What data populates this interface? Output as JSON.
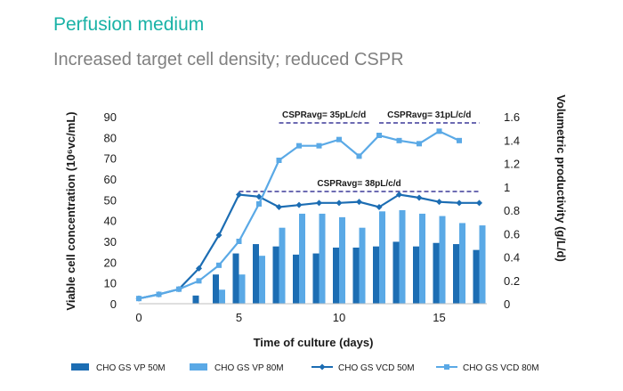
{
  "header": {
    "title": "Perfusion medium",
    "subtitle": "Increased target cell density; reduced CSPR"
  },
  "colors": {
    "title": "#19b2a6",
    "vp50": "#1c6db3",
    "vp80": "#5aa9e6",
    "vcd50": "#1c6db3",
    "vcd80": "#5aa9e6",
    "refline": "#3d3a99"
  },
  "chart_data": {
    "type": "bar",
    "xlabel": "Time of culture (days)",
    "ylabel_left": "Viable cell concentration (10⁶vc/mL)",
    "ylabel_right": "Volumetric productivity (g/L/d)",
    "xlim": [
      -0.5,
      17.5
    ],
    "ylim_left": [
      0,
      90
    ],
    "ylim_right": [
      0,
      1.6
    ],
    "x_ticks": [
      0,
      5,
      10,
      15
    ],
    "y_ticks_left": [
      0,
      10,
      20,
      30,
      40,
      50,
      60,
      70,
      80,
      90
    ],
    "y_ticks_right": [
      "0",
      "0.2",
      "0.4",
      "0.6",
      "0.8",
      "1",
      "1.2",
      "1.4",
      "1.6"
    ],
    "grid": false,
    "legend_position": "bottom",
    "series": [
      {
        "name": "CHO GS VP 50M",
        "kind": "bar",
        "axis": "right",
        "x": [
          3,
          4,
          5,
          6,
          7,
          8,
          9,
          10,
          11,
          12,
          13,
          14,
          15,
          16,
          17
        ],
        "values": [
          0.07,
          0.25,
          0.43,
          0.51,
          0.49,
          0.42,
          0.43,
          0.48,
          0.48,
          0.49,
          0.53,
          0.49,
          0.52,
          0.51,
          0.46
        ]
      },
      {
        "name": "CHO GS VP 80M",
        "kind": "bar",
        "axis": "right",
        "x": [
          3,
          4,
          5,
          6,
          7,
          8,
          9,
          10,
          11,
          12,
          13,
          14,
          15,
          16,
          17
        ],
        "values": [
          0,
          0.12,
          0.25,
          0.41,
          0.65,
          0.77,
          0.77,
          0.74,
          0.65,
          0.79,
          0.8,
          0.77,
          0.75,
          0.69,
          0.67
        ]
      },
      {
        "name": "CHO GS VCD 50M",
        "kind": "line",
        "axis": "left",
        "x": [
          0,
          1,
          2,
          3,
          4,
          5,
          6,
          7,
          8,
          9,
          10,
          11,
          12,
          13,
          14,
          15,
          16,
          17
        ],
        "values": [
          2.5,
          4.5,
          7,
          17,
          33,
          52.5,
          51.5,
          46.5,
          47.5,
          48.5,
          48.5,
          49,
          46.5,
          52.5,
          51,
          49,
          48.5,
          48.5
        ]
      },
      {
        "name": "CHO GS VCD 80M",
        "kind": "line",
        "axis": "left",
        "x": [
          0,
          1,
          2,
          3,
          4,
          5,
          6,
          7,
          8,
          9,
          10,
          11,
          12,
          13,
          14,
          15,
          16
        ],
        "values": [
          2.5,
          4.5,
          7,
          11,
          18.5,
          30,
          48,
          69,
          76,
          76,
          79,
          71,
          81,
          78.5,
          77,
          83,
          78.5
        ]
      }
    ],
    "reference_lines": [
      {
        "label": "CSPRavg= 38pL/c/d",
        "axis": "left",
        "y": 54,
        "x_start": 5,
        "x_end": 17
      },
      {
        "label": "CSPRavg= 35pL/c/d",
        "axis": "left",
        "y": 87,
        "x_start": 7,
        "x_end": 11.5
      },
      {
        "label": "CSPRavg= 31pL/c/d",
        "axis": "left",
        "y": 87,
        "x_start": 12,
        "x_end": 17
      }
    ]
  }
}
